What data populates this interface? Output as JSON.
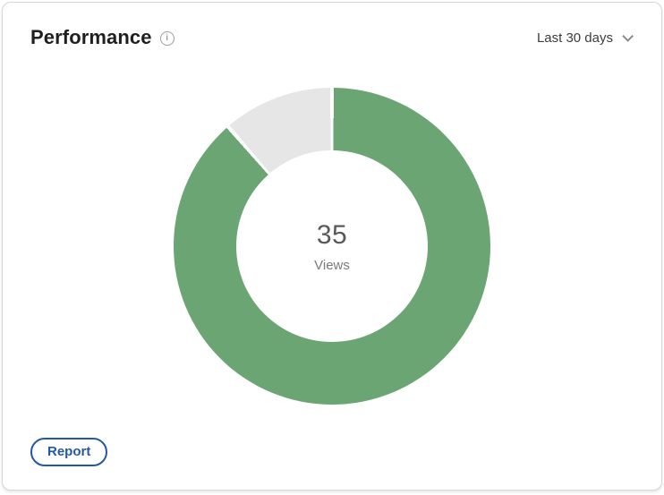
{
  "header": {
    "title": "Performance",
    "filter_label": "Last 30 days"
  },
  "icons": {
    "info": "i",
    "chevron_down": "v-chevron"
  },
  "footer": {
    "report_label": "Report"
  },
  "colors": {
    "accent_green": "#6BA573",
    "track_gray": "#E6E6E6",
    "button_blue": "#2557A7",
    "separator_white": "#FFFFFF"
  },
  "chart_data": {
    "type": "pie",
    "subtype": "donut",
    "title": "Performance",
    "period": "Last 30 days",
    "center_value": "35",
    "center_label": "Views",
    "direction": "clockwise",
    "start_angle_deg": 0,
    "inner_radius_ratio": 0.6,
    "segment_gap_deg": 1.4,
    "segments": [
      {
        "label": "views-filled",
        "percent": 88.6,
        "color": "#6BA573"
      },
      {
        "label": "views-remainder",
        "percent": 11.4,
        "color": "#E6E6E6"
      }
    ]
  }
}
